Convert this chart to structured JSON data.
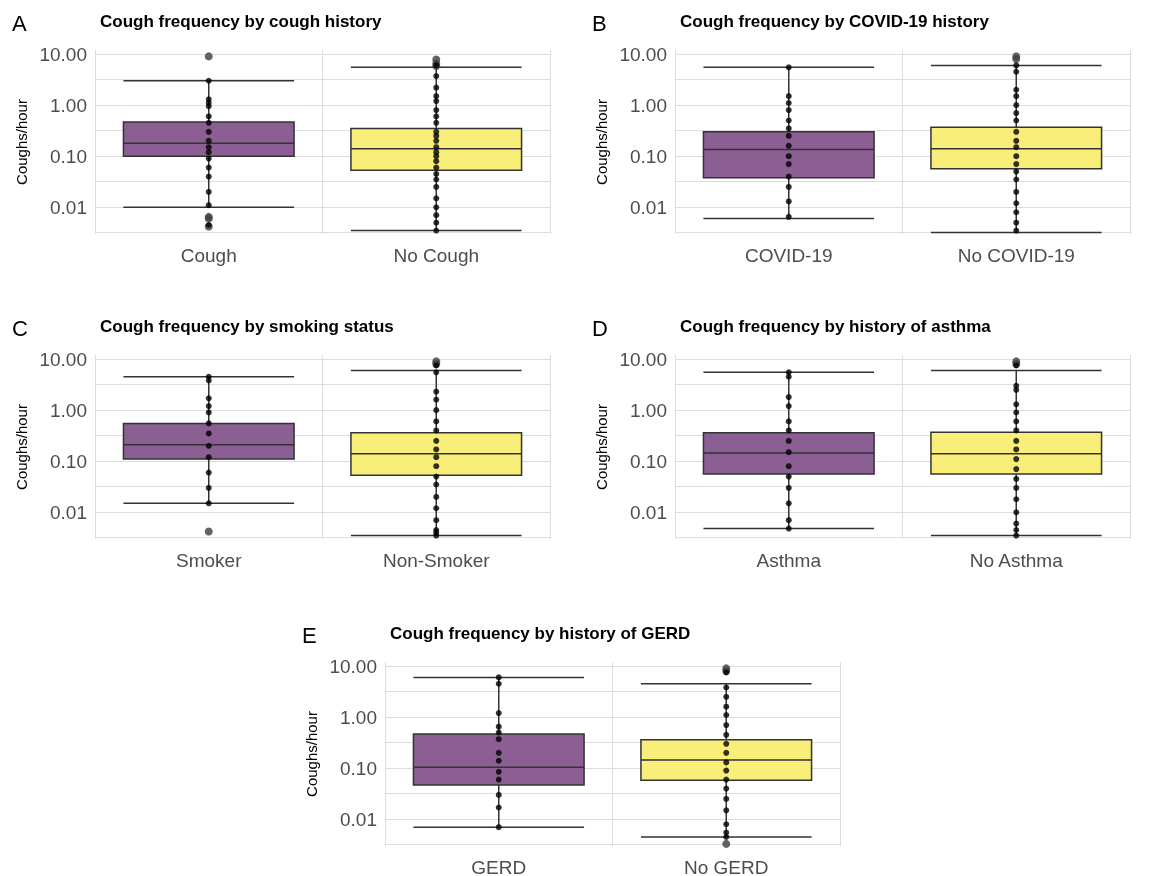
{
  "chart_data": [
    {
      "type": "box",
      "log": true,
      "title": "Cough frequency by cough history",
      "ylabel": "Coughs/hour",
      "annotations": [
        "A"
      ],
      "categories": [
        "Cough",
        "No Cough"
      ],
      "colors": [
        "#8b5f93",
        "#f9ee7a"
      ],
      "boxes": [
        {
          "low": 0.01,
          "q1": 0.1,
          "median": 0.18,
          "q3": 0.47,
          "high": 3.0,
          "outliers": [
            9.0,
            0.0065,
            0.006,
            0.0042
          ]
        },
        {
          "low": 0.0035,
          "q1": 0.053,
          "median": 0.14,
          "q3": 0.35,
          "high": 5.5,
          "outliers": [
            7.8,
            6.5,
            5.8
          ]
        }
      ],
      "series": [
        {
          "type": "scatter",
          "color": "#000000",
          "x": [
            "Cough",
            "Cough",
            "Cough",
            "Cough",
            "Cough",
            "Cough",
            "Cough",
            "Cough",
            "Cough",
            "Cough",
            "Cough",
            "Cough",
            "Cough",
            "Cough",
            "Cough",
            "Cough",
            "No Cough",
            "No Cough",
            "No Cough",
            "No Cough",
            "No Cough",
            "No Cough",
            "No Cough",
            "No Cough",
            "No Cough",
            "No Cough",
            "No Cough",
            "No Cough",
            "No Cough",
            "No Cough",
            "No Cough",
            "No Cough",
            "No Cough",
            "No Cough",
            "No Cough",
            "No Cough",
            "No Cough",
            "No Cough",
            "No Cough",
            "No Cough"
          ],
          "values": [
            3.0,
            1.3,
            1.1,
            0.95,
            0.6,
            0.45,
            0.3,
            0.2,
            0.15,
            0.12,
            0.09,
            0.06,
            0.04,
            0.02,
            0.011,
            0.0045,
            6.0,
            3.7,
            2.2,
            1.5,
            1.2,
            0.8,
            0.6,
            0.45,
            0.3,
            0.25,
            0.2,
            0.15,
            0.12,
            0.1,
            0.08,
            0.06,
            0.045,
            0.035,
            0.025,
            0.015,
            0.01,
            0.007,
            0.005,
            0.0035
          ]
        }
      ],
      "ylim": [
        0.003,
        12
      ],
      "yticks": [
        {
          "value": 0.0032,
          "label": null
        },
        {
          "value": 0.01,
          "label": "0.01"
        },
        {
          "value": 0.032,
          "label": null
        },
        {
          "value": 0.1,
          "label": "0.10"
        },
        {
          "value": 0.32,
          "label": null
        },
        {
          "value": 1,
          "label": "1.00"
        },
        {
          "value": 3.2,
          "label": null
        },
        {
          "value": 10,
          "label": "10.00"
        }
      ],
      "grid": true
    },
    {
      "type": "box",
      "log": true,
      "title": "Cough frequency by COVID-19 history",
      "ylabel": "Coughs/hour",
      "annotations": [
        "B"
      ],
      "categories": [
        "COVID-19",
        "No COVID-19"
      ],
      "colors": [
        "#8b5f93",
        "#f9ee7a"
      ],
      "boxes": [
        {
          "low": 0.006,
          "q1": 0.038,
          "median": 0.135,
          "q3": 0.3,
          "high": 5.5
        },
        {
          "low": 0.0032,
          "q1": 0.057,
          "median": 0.14,
          "q3": 0.37,
          "high": 6.0,
          "outliers": [
            9.0,
            8.0
          ]
        }
      ],
      "series": [
        {
          "type": "scatter",
          "color": "#000000",
          "x": [
            "COVID-19",
            "COVID-19",
            "COVID-19",
            "COVID-19",
            "COVID-19",
            "COVID-19",
            "COVID-19",
            "COVID-19",
            "COVID-19",
            "COVID-19",
            "COVID-19",
            "COVID-19",
            "COVID-19",
            "COVID-19",
            "No COVID-19",
            "No COVID-19",
            "No COVID-19",
            "No COVID-19",
            "No COVID-19",
            "No COVID-19",
            "No COVID-19",
            "No COVID-19",
            "No COVID-19",
            "No COVID-19",
            "No COVID-19",
            "No COVID-19",
            "No COVID-19",
            "No COVID-19",
            "No COVID-19",
            "No COVID-19",
            "No COVID-19",
            "No COVID-19",
            "No COVID-19"
          ],
          "values": [
            5.5,
            1.5,
            1.1,
            0.8,
            0.5,
            0.35,
            0.25,
            0.16,
            0.1,
            0.07,
            0.04,
            0.025,
            0.013,
            0.0065,
            6.0,
            4.5,
            2.0,
            1.5,
            1.0,
            0.7,
            0.5,
            0.3,
            0.2,
            0.15,
            0.1,
            0.07,
            0.05,
            0.035,
            0.02,
            0.012,
            0.008,
            0.005,
            0.0035
          ]
        }
      ],
      "ylim": [
        0.003,
        12
      ],
      "yticks": [
        {
          "value": 0.0032,
          "label": null
        },
        {
          "value": 0.01,
          "label": "0.01"
        },
        {
          "value": 0.032,
          "label": null
        },
        {
          "value": 0.1,
          "label": "0.10"
        },
        {
          "value": 0.32,
          "label": null
        },
        {
          "value": 1,
          "label": "1.00"
        },
        {
          "value": 3.2,
          "label": null
        },
        {
          "value": 10,
          "label": "10.00"
        }
      ],
      "grid": true
    },
    {
      "type": "box",
      "log": true,
      "title": "Cough frequency by smoking status",
      "ylabel": "Coughs/hour",
      "annotations": [
        "C"
      ],
      "categories": [
        "Smoker",
        "Non-Smoker"
      ],
      "colors": [
        "#8b5f93",
        "#f9ee7a"
      ],
      "boxes": [
        {
          "low": 0.015,
          "q1": 0.11,
          "median": 0.21,
          "q3": 0.55,
          "high": 4.5,
          "outliers": [
            0.0042
          ]
        },
        {
          "low": 0.0035,
          "q1": 0.053,
          "median": 0.14,
          "q3": 0.36,
          "high": 6.0,
          "outliers": [
            9.0,
            8.0
          ]
        }
      ],
      "series": [
        {
          "type": "scatter",
          "color": "#000000",
          "x": [
            "Smoker",
            "Smoker",
            "Smoker",
            "Smoker",
            "Smoker",
            "Smoker",
            "Smoker",
            "Smoker",
            "Smoker",
            "Smoker",
            "Smoker",
            "Smoker",
            "Non-Smoker",
            "Non-Smoker",
            "Non-Smoker",
            "Non-Smoker",
            "Non-Smoker",
            "Non-Smoker",
            "Non-Smoker",
            "Non-Smoker",
            "Non-Smoker",
            "Non-Smoker",
            "Non-Smoker",
            "Non-Smoker",
            "Non-Smoker",
            "Non-Smoker",
            "Non-Smoker",
            "Non-Smoker",
            "Non-Smoker",
            "Non-Smoker",
            "Non-Smoker"
          ],
          "values": [
            4.5,
            3.8,
            1.7,
            1.2,
            0.9,
            0.55,
            0.35,
            0.2,
            0.12,
            0.06,
            0.03,
            0.015,
            7.5,
            5.5,
            2.3,
            1.6,
            1.0,
            0.6,
            0.4,
            0.25,
            0.17,
            0.12,
            0.08,
            0.05,
            0.035,
            0.02,
            0.012,
            0.007,
            0.0045,
            0.004,
            0.0035
          ]
        }
      ],
      "ylim": [
        0.003,
        12
      ],
      "yticks": [
        {
          "value": 0.0032,
          "label": null
        },
        {
          "value": 0.01,
          "label": "0.01"
        },
        {
          "value": 0.032,
          "label": null
        },
        {
          "value": 0.1,
          "label": "0.10"
        },
        {
          "value": 0.32,
          "label": null
        },
        {
          "value": 1,
          "label": "1.00"
        },
        {
          "value": 3.2,
          "label": null
        },
        {
          "value": 10,
          "label": "10.00"
        }
      ],
      "grid": true
    },
    {
      "type": "box",
      "log": true,
      "title": "Cough frequency by history of asthma",
      "ylabel": "Coughs/hour",
      "annotations": [
        "D"
      ],
      "categories": [
        "Asthma",
        "No Asthma"
      ],
      "colors": [
        "#8b5f93",
        "#f9ee7a"
      ],
      "boxes": [
        {
          "low": 0.0048,
          "q1": 0.056,
          "median": 0.145,
          "q3": 0.36,
          "high": 5.5
        },
        {
          "low": 0.0035,
          "q1": 0.056,
          "median": 0.14,
          "q3": 0.37,
          "high": 6.0,
          "outliers": [
            9.0,
            8.0
          ]
        }
      ],
      "series": [
        {
          "type": "scatter",
          "color": "#000000",
          "x": [
            "Asthma",
            "Asthma",
            "Asthma",
            "Asthma",
            "Asthma",
            "Asthma",
            "Asthma",
            "Asthma",
            "Asthma",
            "Asthma",
            "Asthma",
            "Asthma",
            "Asthma",
            "Asthma",
            "No Asthma",
            "No Asthma",
            "No Asthma",
            "No Asthma",
            "No Asthma",
            "No Asthma",
            "No Asthma",
            "No Asthma",
            "No Asthma",
            "No Asthma",
            "No Asthma",
            "No Asthma",
            "No Asthma",
            "No Asthma",
            "No Asthma",
            "No Asthma",
            "No Asthma",
            "No Asthma"
          ],
          "values": [
            5.5,
            4.5,
            1.8,
            1.2,
            0.6,
            0.4,
            0.25,
            0.15,
            0.08,
            0.05,
            0.03,
            0.015,
            0.007,
            0.0048,
            7.5,
            3.0,
            2.5,
            1.3,
            0.9,
            0.6,
            0.4,
            0.25,
            0.17,
            0.11,
            0.07,
            0.045,
            0.03,
            0.018,
            0.01,
            0.006,
            0.0045,
            0.0035
          ]
        }
      ],
      "ylim": [
        0.003,
        12
      ],
      "yticks": [
        {
          "value": 0.0032,
          "label": null
        },
        {
          "value": 0.01,
          "label": "0.01"
        },
        {
          "value": 0.032,
          "label": null
        },
        {
          "value": 0.1,
          "label": "0.10"
        },
        {
          "value": 0.32,
          "label": null
        },
        {
          "value": 1,
          "label": "1.00"
        },
        {
          "value": 3.2,
          "label": null
        },
        {
          "value": 10,
          "label": "10.00"
        }
      ],
      "grid": true
    },
    {
      "type": "box",
      "log": true,
      "title": "Cough frequency by history of GERD",
      "ylabel": "Coughs/hour",
      "annotations": [
        "E"
      ],
      "categories": [
        "GERD",
        "No GERD"
      ],
      "colors": [
        "#8b5f93",
        "#f9ee7a"
      ],
      "boxes": [
        {
          "low": 0.007,
          "q1": 0.047,
          "median": 0.105,
          "q3": 0.47,
          "high": 6.0
        },
        {
          "low": 0.0045,
          "q1": 0.058,
          "median": 0.145,
          "q3": 0.36,
          "high": 4.5,
          "outliers": [
            9.0,
            8.0,
            0.0033
          ]
        }
      ],
      "series": [
        {
          "type": "scatter",
          "color": "#000000",
          "x": [
            "GERD",
            "GERD",
            "GERD",
            "GERD",
            "GERD",
            "GERD",
            "GERD",
            "GERD",
            "GERD",
            "GERD",
            "GERD",
            "GERD",
            "GERD",
            "No GERD",
            "No GERD",
            "No GERD",
            "No GERD",
            "No GERD",
            "No GERD",
            "No GERD",
            "No GERD",
            "No GERD",
            "No GERD",
            "No GERD",
            "No GERD",
            "No GERD",
            "No GERD",
            "No GERD",
            "No GERD",
            "No GERD",
            "No GERD"
          ],
          "values": [
            6.0,
            4.5,
            1.2,
            0.65,
            0.5,
            0.37,
            0.2,
            0.14,
            0.085,
            0.06,
            0.03,
            0.017,
            0.007,
            7.5,
            3.8,
            2.5,
            1.6,
            1.1,
            0.7,
            0.45,
            0.3,
            0.2,
            0.13,
            0.09,
            0.06,
            0.04,
            0.025,
            0.015,
            0.008,
            0.0055,
            0.0045
          ]
        }
      ],
      "ylim": [
        0.003,
        12
      ],
      "yticks": [
        {
          "value": 0.0032,
          "label": null
        },
        {
          "value": 0.01,
          "label": "0.01"
        },
        {
          "value": 0.032,
          "label": null
        },
        {
          "value": 0.1,
          "label": "0.10"
        },
        {
          "value": 0.32,
          "label": null
        },
        {
          "value": 1,
          "label": "1.00"
        },
        {
          "value": 3.2,
          "label": null
        },
        {
          "value": 10,
          "label": "10.00"
        }
      ],
      "grid": true
    }
  ]
}
